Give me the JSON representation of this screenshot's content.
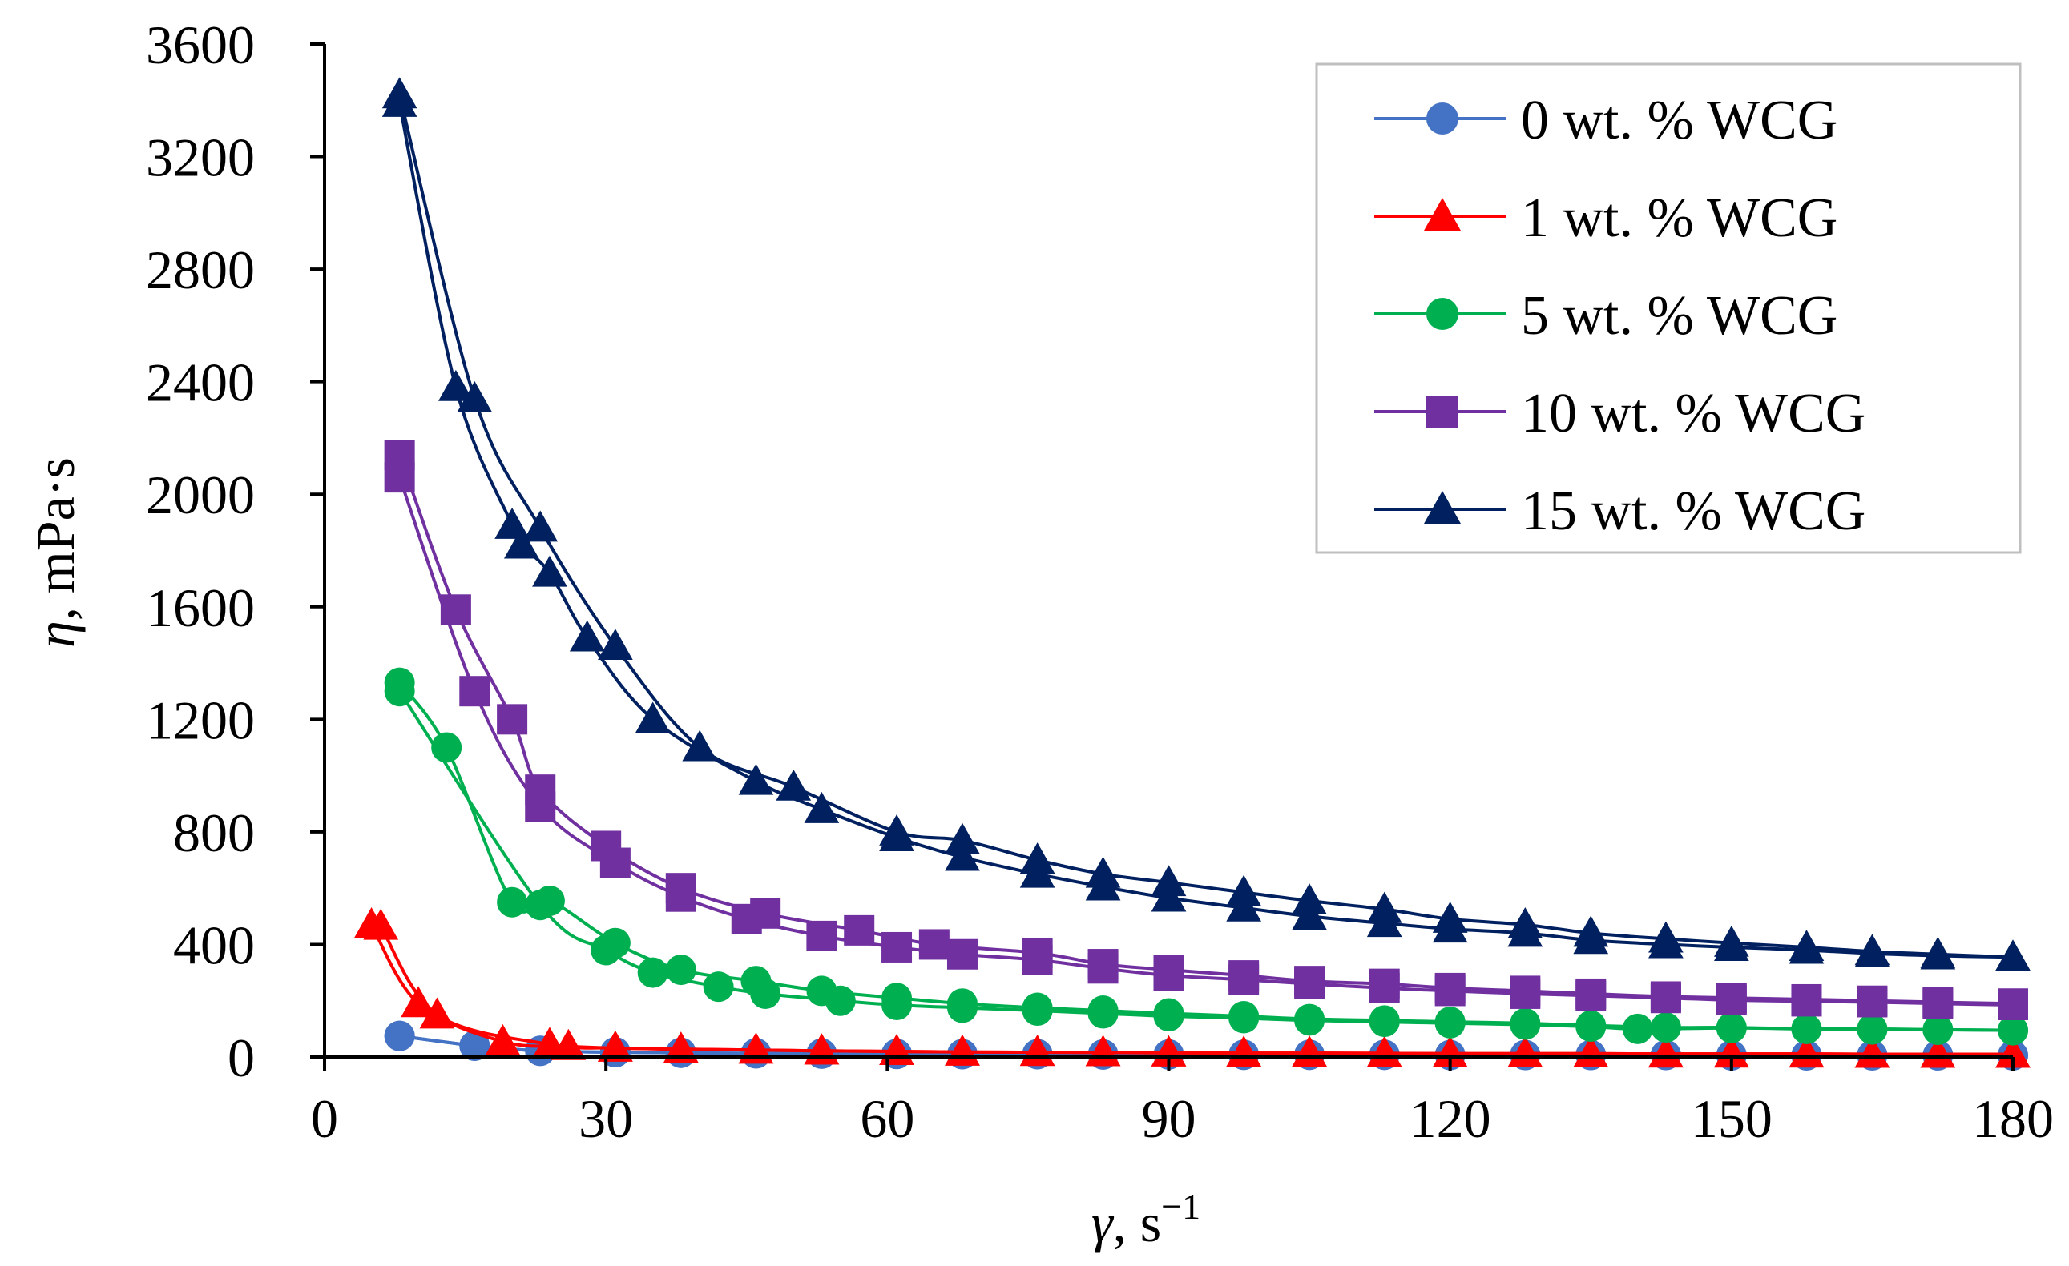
{
  "chart_data": {
    "type": "line",
    "xlabel_symbol": "γ",
    "xlabel_unit": "s",
    "xlabel_unit_exp": "−1",
    "ylabel_symbol": "η",
    "ylabel_unit": "mPa·s",
    "xlim": [
      0,
      180
    ],
    "ylim": [
      0,
      3600
    ],
    "xticks": [
      0,
      30,
      60,
      90,
      120,
      150,
      180
    ],
    "yticks": [
      0,
      400,
      800,
      1200,
      1600,
      2000,
      2400,
      2800,
      3200,
      3600
    ],
    "grid": false,
    "legend_position": "top-right",
    "series": [
      {
        "name": "0 wt. % WCG",
        "color": "#4472C4",
        "marker": "circle",
        "up": [
          [
            8,
            75
          ],
          [
            16,
            40
          ],
          [
            23,
            22
          ],
          [
            31,
            17
          ],
          [
            38,
            15
          ],
          [
            46,
            13
          ],
          [
            53,
            12
          ],
          [
            61,
            11
          ],
          [
            68,
            10
          ],
          [
            76,
            10
          ],
          [
            83,
            9
          ],
          [
            90,
            9
          ],
          [
            98,
            8
          ],
          [
            105,
            8
          ],
          [
            113,
            8
          ],
          [
            120,
            7
          ],
          [
            128,
            7
          ],
          [
            135,
            7
          ],
          [
            143,
            7
          ],
          [
            150,
            6
          ],
          [
            158,
            6
          ],
          [
            165,
            6
          ],
          [
            172,
            6
          ],
          [
            180,
            6
          ]
        ],
        "down": [
          [
            180,
            6
          ],
          [
            172,
            6
          ],
          [
            165,
            6
          ],
          [
            158,
            6
          ],
          [
            150,
            6
          ],
          [
            143,
            7
          ],
          [
            135,
            7
          ],
          [
            128,
            7
          ],
          [
            120,
            7
          ],
          [
            113,
            8
          ],
          [
            105,
            8
          ],
          [
            98,
            8
          ],
          [
            90,
            9
          ],
          [
            83,
            9
          ],
          [
            76,
            10
          ],
          [
            68,
            10
          ],
          [
            61,
            11
          ],
          [
            53,
            12
          ],
          [
            46,
            13
          ],
          [
            38,
            15
          ],
          [
            31,
            17
          ],
          [
            23,
            22
          ],
          [
            16,
            40
          ],
          [
            8,
            75
          ]
        ]
      },
      {
        "name": "1 wt. % WCG",
        "color": "#FF0000",
        "marker": "triangle",
        "up": [
          [
            5,
            470
          ],
          [
            10,
            190
          ],
          [
            19,
            55
          ],
          [
            26,
            38
          ],
          [
            31,
            32
          ],
          [
            38,
            28
          ],
          [
            46,
            25
          ],
          [
            53,
            22
          ],
          [
            61,
            20
          ],
          [
            68,
            18
          ],
          [
            76,
            17
          ],
          [
            83,
            16
          ],
          [
            90,
            15
          ],
          [
            98,
            14
          ],
          [
            105,
            14
          ],
          [
            113,
            13
          ],
          [
            120,
            12
          ],
          [
            128,
            12
          ],
          [
            135,
            12
          ],
          [
            143,
            11
          ],
          [
            150,
            11
          ],
          [
            158,
            11
          ],
          [
            165,
            10
          ],
          [
            172,
            10
          ],
          [
            180,
            10
          ]
        ],
        "down": [
          [
            180,
            10
          ],
          [
            172,
            10
          ],
          [
            165,
            10
          ],
          [
            158,
            11
          ],
          [
            150,
            11
          ],
          [
            143,
            11
          ],
          [
            135,
            12
          ],
          [
            128,
            12
          ],
          [
            120,
            12
          ],
          [
            113,
            13
          ],
          [
            105,
            14
          ],
          [
            98,
            14
          ],
          [
            90,
            15
          ],
          [
            83,
            16
          ],
          [
            76,
            17
          ],
          [
            68,
            18
          ],
          [
            61,
            20
          ],
          [
            53,
            22
          ],
          [
            46,
            25
          ],
          [
            38,
            28
          ],
          [
            31,
            32
          ],
          [
            24,
            45
          ],
          [
            12,
            150
          ],
          [
            6,
            465
          ]
        ]
      },
      {
        "name": "5 wt. % WCG",
        "color": "#00B050",
        "marker": "circle",
        "up": [
          [
            8,
            1330
          ],
          [
            13,
            1100
          ],
          [
            20,
            550
          ],
          [
            24,
            555
          ],
          [
            31,
            405
          ],
          [
            38,
            310
          ],
          [
            46,
            270
          ],
          [
            53,
            235
          ],
          [
            61,
            210
          ],
          [
            68,
            190
          ],
          [
            76,
            175
          ],
          [
            83,
            165
          ],
          [
            90,
            155
          ],
          [
            98,
            145
          ],
          [
            105,
            135
          ],
          [
            113,
            130
          ],
          [
            120,
            125
          ],
          [
            128,
            120
          ],
          [
            135,
            112
          ],
          [
            143,
            105
          ],
          [
            150,
            105
          ],
          [
            158,
            100
          ],
          [
            165,
            100
          ],
          [
            172,
            97
          ],
          [
            180,
            95
          ]
        ],
        "down": [
          [
            180,
            95
          ],
          [
            172,
            97
          ],
          [
            165,
            98
          ],
          [
            158,
            100
          ],
          [
            150,
            103
          ],
          [
            140,
            100
          ],
          [
            135,
            108
          ],
          [
            128,
            115
          ],
          [
            120,
            120
          ],
          [
            113,
            125
          ],
          [
            105,
            130
          ],
          [
            98,
            138
          ],
          [
            90,
            145
          ],
          [
            83,
            155
          ],
          [
            76,
            165
          ],
          [
            68,
            175
          ],
          [
            61,
            185
          ],
          [
            55,
            200
          ],
          [
            47,
            225
          ],
          [
            42,
            250
          ],
          [
            35,
            300
          ],
          [
            30,
            380
          ],
          [
            23,
            540
          ],
          [
            8,
            1300
          ]
        ]
      },
      {
        "name": "10 wt. % WCG",
        "color": "#7030A0",
        "marker": "square",
        "up": [
          [
            8,
            2140
          ],
          [
            14,
            1590
          ],
          [
            20,
            1200
          ],
          [
            23,
            950
          ],
          [
            30,
            750
          ],
          [
            38,
            600
          ],
          [
            47,
            510
          ],
          [
            57,
            450
          ],
          [
            65,
            400
          ],
          [
            76,
            370
          ],
          [
            83,
            330
          ],
          [
            90,
            310
          ],
          [
            98,
            290
          ],
          [
            105,
            270
          ],
          [
            113,
            260
          ],
          [
            120,
            245
          ],
          [
            128,
            235
          ],
          [
            135,
            225
          ],
          [
            143,
            215
          ],
          [
            150,
            210
          ],
          [
            158,
            205
          ],
          [
            165,
            200
          ],
          [
            172,
            195
          ],
          [
            180,
            190
          ]
        ],
        "down": [
          [
            180,
            185
          ],
          [
            172,
            190
          ],
          [
            165,
            195
          ],
          [
            158,
            198
          ],
          [
            150,
            202
          ],
          [
            143,
            210
          ],
          [
            135,
            218
          ],
          [
            128,
            225
          ],
          [
            120,
            235
          ],
          [
            113,
            245
          ],
          [
            105,
            260
          ],
          [
            98,
            275
          ],
          [
            90,
            290
          ],
          [
            83,
            315
          ],
          [
            76,
            345
          ],
          [
            68,
            365
          ],
          [
            61,
            390
          ],
          [
            53,
            430
          ],
          [
            45,
            490
          ],
          [
            38,
            570
          ],
          [
            31,
            690
          ],
          [
            23,
            890
          ],
          [
            16,
            1300
          ],
          [
            8,
            2060
          ]
        ]
      },
      {
        "name": "15 wt. % WCG",
        "color": "#002060",
        "marker": "triangle",
        "up": [
          [
            8,
            3420
          ],
          [
            16,
            2340
          ],
          [
            23,
            1880
          ],
          [
            31,
            1460
          ],
          [
            40,
            1100
          ],
          [
            50,
            960
          ],
          [
            61,
            800
          ],
          [
            68,
            770
          ],
          [
            76,
            700
          ],
          [
            83,
            650
          ],
          [
            90,
            620
          ],
          [
            98,
            585
          ],
          [
            105,
            555
          ],
          [
            113,
            525
          ],
          [
            120,
            490
          ],
          [
            128,
            470
          ],
          [
            135,
            440
          ],
          [
            143,
            420
          ],
          [
            150,
            405
          ],
          [
            158,
            390
          ],
          [
            165,
            375
          ],
          [
            172,
            365
          ],
          [
            180,
            355
          ]
        ],
        "down": [
          [
            180,
            355
          ],
          [
            172,
            360
          ],
          [
            165,
            368
          ],
          [
            158,
            380
          ],
          [
            150,
            390
          ],
          [
            143,
            400
          ],
          [
            135,
            415
          ],
          [
            128,
            440
          ],
          [
            120,
            455
          ],
          [
            113,
            475
          ],
          [
            105,
            500
          ],
          [
            98,
            530
          ],
          [
            90,
            565
          ],
          [
            83,
            605
          ],
          [
            76,
            650
          ],
          [
            68,
            710
          ],
          [
            61,
            780
          ],
          [
            53,
            880
          ],
          [
            46,
            980
          ],
          [
            35,
            1200
          ],
          [
            28,
            1490
          ],
          [
            24,
            1720
          ],
          [
            21,
            1820
          ],
          [
            20,
            1890
          ],
          [
            14,
            2380
          ],
          [
            8,
            3390
          ]
        ]
      }
    ]
  }
}
